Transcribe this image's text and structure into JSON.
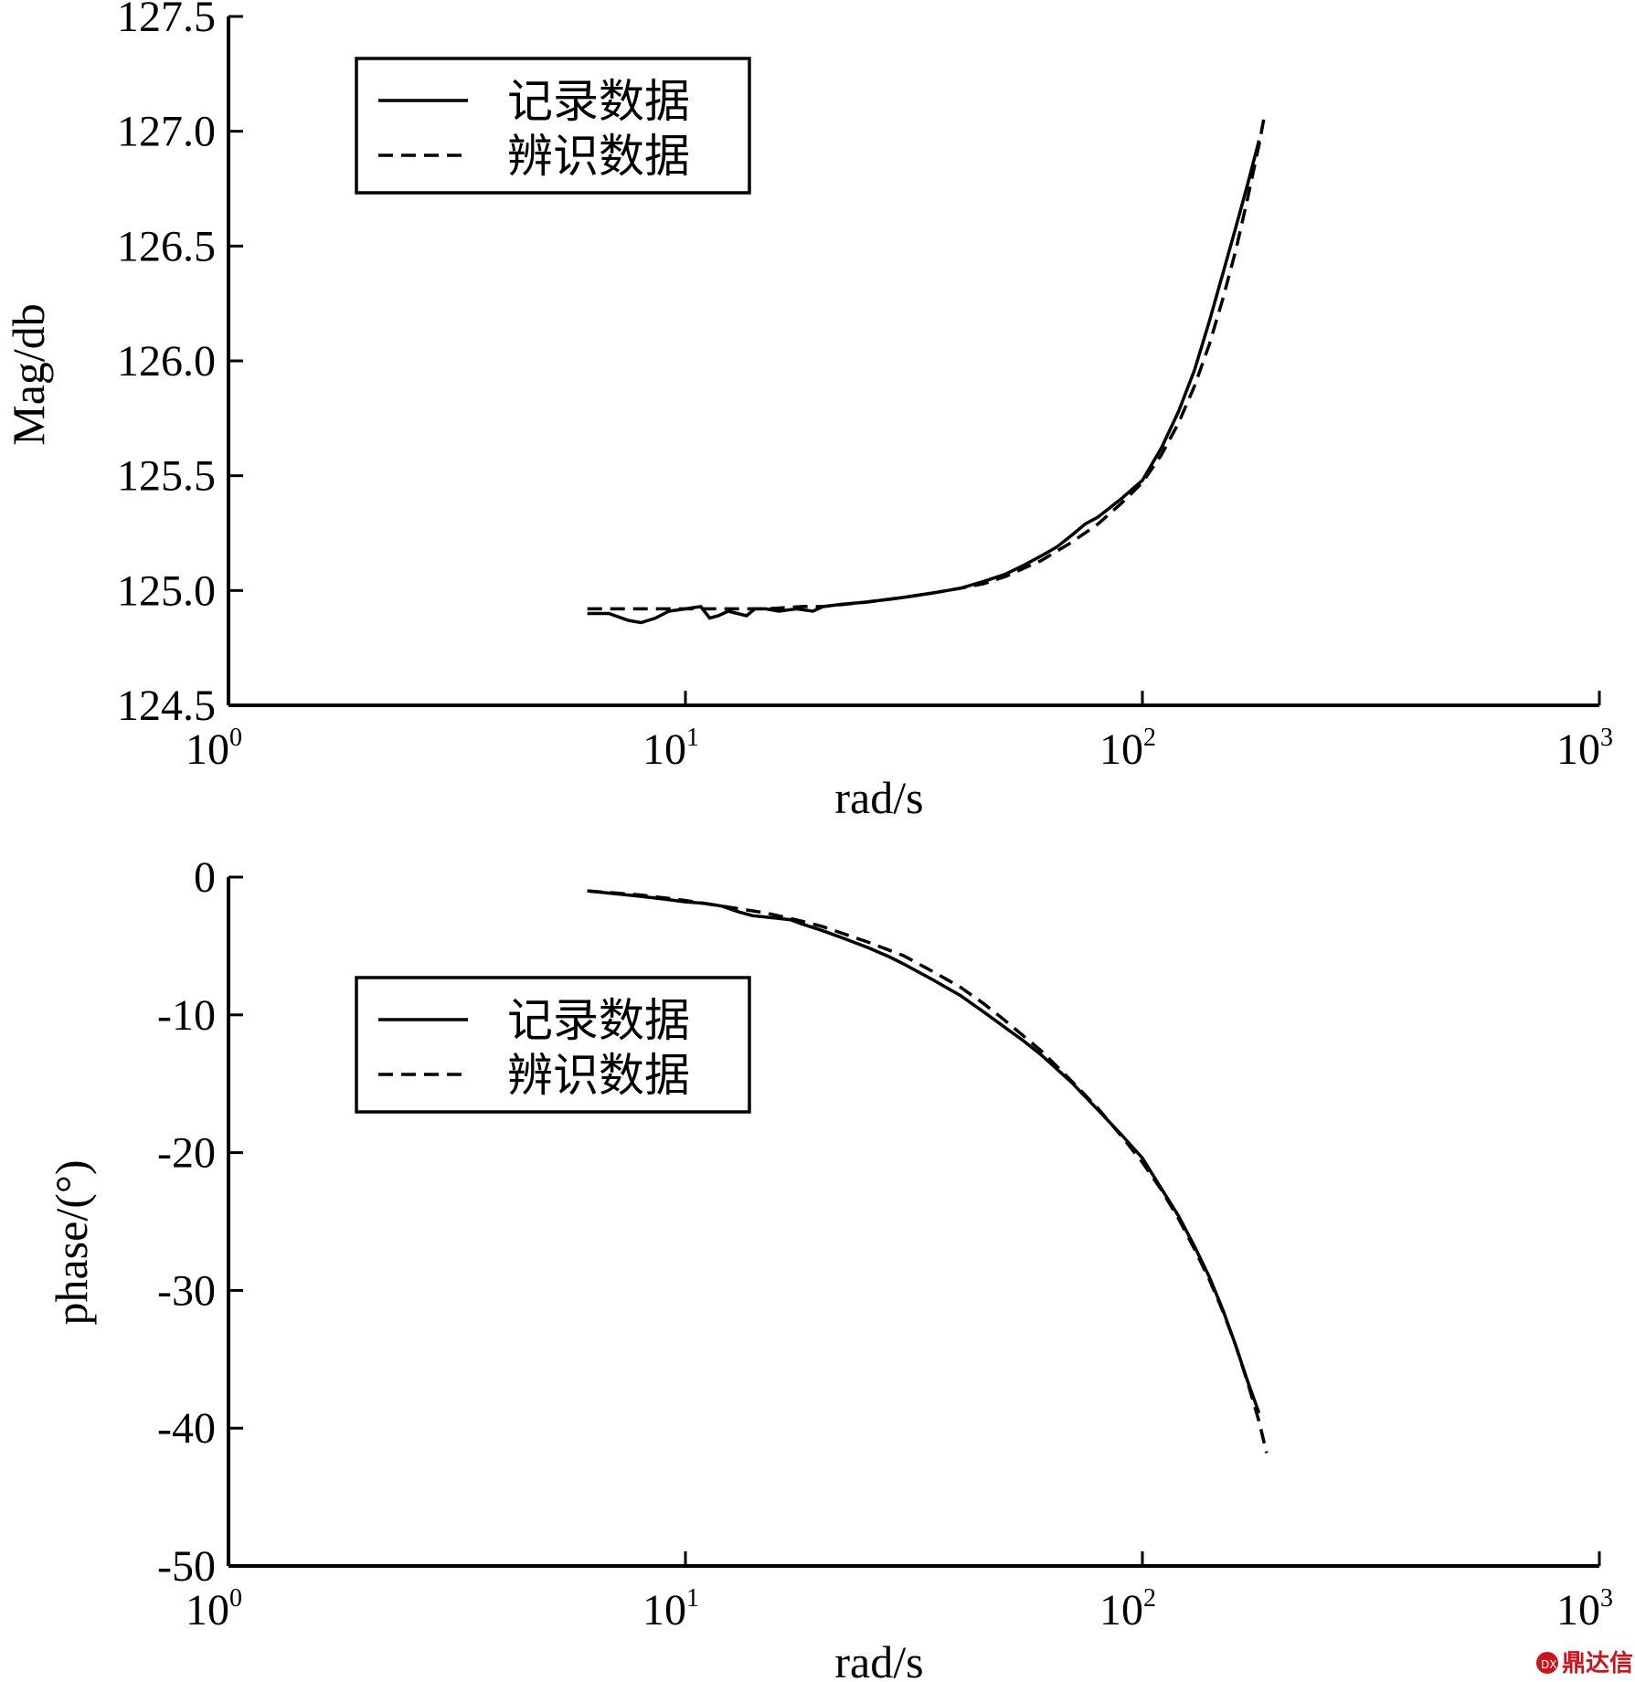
{
  "chart_data": [
    {
      "type": "line",
      "xlabel": "rad/s",
      "ylabel": "Mag/db",
      "xscale": "log",
      "xlim": [
        1,
        1000
      ],
      "ylim": [
        124.5,
        127.5
      ],
      "xticks": [
        {
          "base": "10",
          "exp": "0"
        },
        {
          "base": "10",
          "exp": "1"
        },
        {
          "base": "10",
          "exp": "2"
        },
        {
          "base": "10",
          "exp": "3"
        }
      ],
      "yticks": [
        "124.5",
        "125.0",
        "125.5",
        "126.0",
        "126.5",
        "127.0",
        "127.5"
      ],
      "legend": {
        "placement": "top-left",
        "entries": [
          "记录数据",
          "辨识数据"
        ]
      },
      "series": [
        {
          "name": "记录数据",
          "style": "solid",
          "x": [
            6.1,
            6.8,
            7.5,
            8.0,
            8.6,
            9.2,
            10.0,
            10.8,
            11.3,
            11.8,
            12.4,
            13.0,
            13.6,
            14.2,
            15.0,
            16.0,
            17.5,
            19.0,
            20.0,
            22.0,
            25.0,
            30.0,
            35.0,
            40.0,
            45.0,
            50.0,
            55.0,
            60.0,
            65.0,
            70.0,
            75.0,
            80.0,
            90.0,
            100.0,
            110.0,
            120.0,
            130.0,
            140.0,
            150.0,
            160.0,
            170.0,
            180.0
          ],
          "y": [
            124.9,
            124.9,
            124.87,
            124.86,
            124.88,
            124.91,
            124.92,
            124.93,
            124.88,
            124.89,
            124.91,
            124.9,
            124.89,
            124.92,
            124.92,
            124.91,
            124.92,
            124.91,
            124.93,
            124.94,
            124.95,
            124.97,
            124.99,
            125.01,
            125.04,
            125.07,
            125.11,
            125.15,
            125.19,
            125.24,
            125.29,
            125.32,
            125.4,
            125.48,
            125.62,
            125.78,
            125.96,
            126.17,
            126.38,
            126.58,
            126.77,
            126.96
          ]
        },
        {
          "name": "辨识数据",
          "style": "dashed",
          "x": [
            6.1,
            8.0,
            10.0,
            12.0,
            15.0,
            18.0,
            20.0,
            25.0,
            30.0,
            35.0,
            40.0,
            45.0,
            50.0,
            60.0,
            70.0,
            80.0,
            90.0,
            100.0,
            110.0,
            120.0,
            130.0,
            140.0,
            150.0,
            160.0,
            170.0,
            180.0,
            185.0
          ],
          "y": [
            124.92,
            124.92,
            124.92,
            124.92,
            124.92,
            124.93,
            124.93,
            124.95,
            124.97,
            124.99,
            125.01,
            125.03,
            125.06,
            125.13,
            125.21,
            125.29,
            125.38,
            125.47,
            125.59,
            125.73,
            125.89,
            126.07,
            126.27,
            126.48,
            126.71,
            126.94,
            127.07
          ]
        }
      ]
    },
    {
      "type": "line",
      "xlabel": "rad/s",
      "ylabel": "phase/(°)",
      "xscale": "log",
      "xlim": [
        1,
        1000
      ],
      "ylim": [
        -50,
        0
      ],
      "xticks": [
        {
          "base": "10",
          "exp": "0"
        },
        {
          "base": "10",
          "exp": "1"
        },
        {
          "base": "10",
          "exp": "2"
        },
        {
          "base": "10",
          "exp": "3"
        }
      ],
      "yticks": [
        "-50",
        "-40",
        "-30",
        "-20",
        "-10",
        "0"
      ],
      "legend": {
        "placement": "top-left",
        "entries": [
          "记录数据",
          "辨识数据"
        ]
      },
      "series": [
        {
          "name": "记录数据",
          "style": "solid",
          "x": [
            6.1,
            7.0,
            8.0,
            9.0,
            10.0,
            11.0,
            12.0,
            13.0,
            14.0,
            15.0,
            16.0,
            17.0,
            18.0,
            20.0,
            22.0,
            25.0,
            28.0,
            30.0,
            35.0,
            40.0,
            45.0,
            50.0,
            55.0,
            60.0,
            70.0,
            80.0,
            90.0,
            100.0,
            110.0,
            120.0,
            130.0,
            140.0,
            150.0,
            160.0,
            170.0,
            180.0
          ],
          "y": [
            -1.0,
            -1.2,
            -1.4,
            -1.6,
            -1.8,
            -1.9,
            -2.1,
            -2.5,
            -2.8,
            -2.9,
            -3.0,
            -3.1,
            -3.4,
            -3.9,
            -4.4,
            -5.1,
            -5.8,
            -6.3,
            -7.5,
            -8.6,
            -9.8,
            -10.9,
            -11.9,
            -12.9,
            -14.9,
            -16.9,
            -18.7,
            -20.4,
            -22.6,
            -24.6,
            -26.8,
            -29.0,
            -31.4,
            -34.0,
            -36.6,
            -38.9
          ]
        },
        {
          "name": "辨识数据",
          "style": "dashed",
          "x": [
            6.1,
            8.0,
            10.0,
            12.0,
            15.0,
            18.0,
            20.0,
            25.0,
            30.0,
            35.0,
            40.0,
            45.0,
            50.0,
            60.0,
            70.0,
            80.0,
            90.0,
            100.0,
            110.0,
            120.0,
            130.0,
            140.0,
            150.0,
            160.0,
            170.0,
            180.0,
            187.0
          ],
          "y": [
            -1.0,
            -1.3,
            -1.7,
            -2.1,
            -2.6,
            -3.2,
            -3.6,
            -4.7,
            -5.7,
            -6.9,
            -8.0,
            -9.2,
            -10.4,
            -12.6,
            -14.8,
            -16.8,
            -18.8,
            -20.7,
            -22.7,
            -24.8,
            -27.0,
            -29.2,
            -31.5,
            -34.0,
            -36.7,
            -39.5,
            -41.8
          ]
        }
      ]
    }
  ],
  "watermark": {
    "text": "鼎达信",
    "color": "#c8161d"
  }
}
